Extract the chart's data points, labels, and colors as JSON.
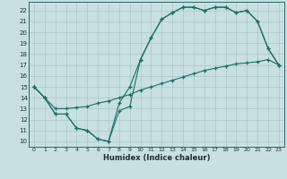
{
  "xlabel": "Humidex (Indice chaleur)",
  "bg_color": "#c8e0e0",
  "grid_color": "#a8c8c8",
  "line_color": "#1a6e64",
  "xlim": [
    -0.5,
    23.5
  ],
  "ylim": [
    9.5,
    22.8
  ],
  "xticks": [
    0,
    1,
    2,
    3,
    4,
    5,
    6,
    7,
    8,
    9,
    10,
    11,
    12,
    13,
    14,
    15,
    16,
    17,
    18,
    19,
    20,
    21,
    22,
    23
  ],
  "yticks": [
    10,
    11,
    12,
    13,
    14,
    15,
    16,
    17,
    18,
    19,
    20,
    21,
    22
  ],
  "curve1_x": [
    0,
    1,
    2,
    3,
    4,
    5,
    6,
    7,
    8,
    9,
    10,
    11,
    12,
    13,
    14,
    15,
    16,
    17,
    18,
    19,
    20,
    21,
    22,
    23
  ],
  "curve1_y": [
    15.0,
    14.0,
    12.5,
    12.5,
    11.2,
    11.0,
    10.2,
    10.0,
    12.8,
    13.2,
    17.5,
    19.5,
    21.2,
    21.8,
    22.3,
    22.3,
    22.0,
    22.3,
    22.3,
    21.8,
    22.0,
    21.0,
    18.5,
    17.0
  ],
  "curve2_x": [
    0,
    1,
    2,
    3,
    4,
    5,
    6,
    7,
    8,
    9,
    10,
    11,
    12,
    13,
    14,
    15,
    16,
    17,
    18,
    19,
    20,
    21,
    22,
    23
  ],
  "curve2_y": [
    15.0,
    14.0,
    12.5,
    12.5,
    11.2,
    11.0,
    10.2,
    10.0,
    13.5,
    15.0,
    17.5,
    19.5,
    21.2,
    21.8,
    22.3,
    22.3,
    22.0,
    22.3,
    22.3,
    21.8,
    22.0,
    21.0,
    18.5,
    17.0
  ],
  "curve3_x": [
    0,
    1,
    2,
    3,
    4,
    5,
    6,
    7,
    8,
    9,
    10,
    11,
    12,
    13,
    14,
    15,
    16,
    17,
    18,
    19,
    20,
    21,
    22,
    23
  ],
  "curve3_y": [
    15.0,
    14.0,
    13.0,
    13.0,
    13.1,
    13.2,
    13.5,
    13.7,
    14.0,
    14.3,
    14.7,
    15.0,
    15.3,
    15.6,
    15.9,
    16.2,
    16.5,
    16.7,
    16.9,
    17.1,
    17.2,
    17.3,
    17.5,
    17.0
  ]
}
